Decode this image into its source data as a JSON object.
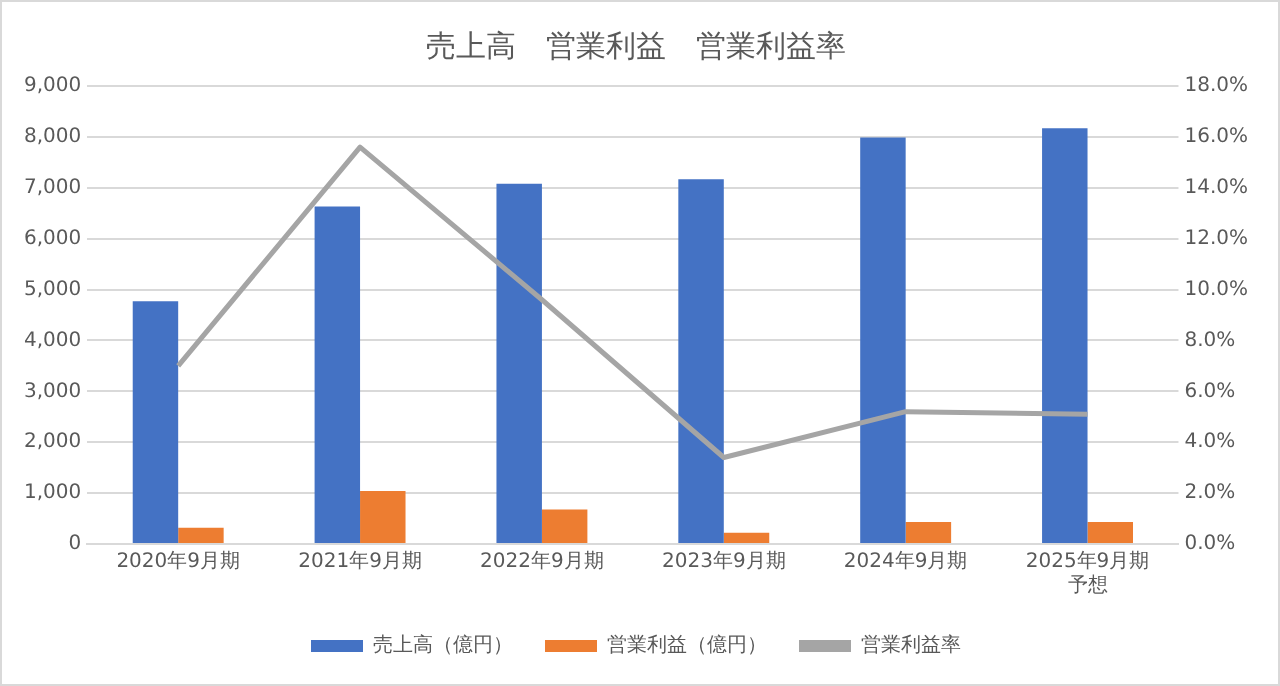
{
  "chart_data": {
    "type": "bar",
    "title": "売上高　営業利益　営業利益率",
    "categories": [
      "2020年9月期",
      "2021年9月期",
      "2022年9月期",
      "2023年9月期",
      "2024年9月期",
      "2025年9月期予想"
    ],
    "series": [
      {
        "name": "売上高（億円）",
        "color": "#4472c4",
        "values": [
          4770,
          6630,
          7080,
          7170,
          7990,
          8170
        ]
      },
      {
        "name": "営業利益（億円）",
        "color": "#ed7d31",
        "values": [
          320,
          1040,
          680,
          220,
          430,
          430
        ]
      },
      {
        "name": "営業利益率",
        "type": "line",
        "axis": "y2",
        "color": "#a5a5a5",
        "values": [
          7.0,
          15.6,
          9.6,
          3.4,
          5.2,
          5.1
        ]
      }
    ],
    "ylim": [
      0,
      9000
    ],
    "yticks": [
      {
        "value": 0,
        "label": "0"
      },
      {
        "value": 1000,
        "label": "1,000"
      },
      {
        "value": 2000,
        "label": "2,000"
      },
      {
        "value": 3000,
        "label": "3,000"
      },
      {
        "value": 4000,
        "label": "4,000"
      },
      {
        "value": 5000,
        "label": "5,000"
      },
      {
        "value": 6000,
        "label": "6,000"
      },
      {
        "value": 7000,
        "label": "7,000"
      },
      {
        "value": 8000,
        "label": "8,000"
      },
      {
        "value": 9000,
        "label": "9,000"
      }
    ],
    "y2lim": [
      0,
      18
    ],
    "y2ticks": [
      {
        "value": 0,
        "label": "0.0%"
      },
      {
        "value": 2,
        "label": "2.0%"
      },
      {
        "value": 4,
        "label": "4.0%"
      },
      {
        "value": 6,
        "label": "6.0%"
      },
      {
        "value": 8,
        "label": "8.0%"
      },
      {
        "value": 10,
        "label": "10.0%"
      },
      {
        "value": 12,
        "label": "12.0%"
      },
      {
        "value": 14,
        "label": "14.0%"
      },
      {
        "value": 16,
        "label": "16.0%"
      },
      {
        "value": 18,
        "label": "18.0%"
      }
    ],
    "grid": "y",
    "legend": "bottom",
    "marker": "none",
    "line_style": "solid"
  }
}
